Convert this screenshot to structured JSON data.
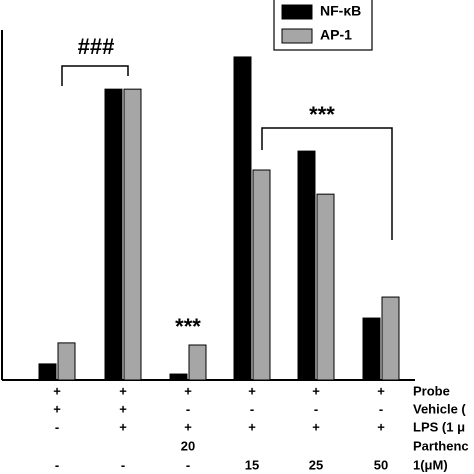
{
  "chart_data": {
    "type": "bar",
    "categories": [
      null,
      null,
      null,
      null,
      null,
      null
    ],
    "ylim": [
      0,
      100
    ],
    "series": [
      {
        "name": "NF-κB",
        "color": "#000000",
        "values": [
          4.6,
          83.1,
          1.7,
          92.3,
          65.4,
          17.7
        ]
      },
      {
        "name": "AP-1",
        "color": "#a6a6a6",
        "values": [
          10.6,
          83.1,
          10,
          60,
          53.1,
          23.7
        ]
      }
    ],
    "annotations": [
      "###",
      "***",
      "***"
    ],
    "conditions": {
      "row_labels": [
        "Probe",
        "Vehicle (",
        "LPS  (1 μ",
        "Parthenc",
        "1(μM)"
      ],
      "rows": [
        [
          "+",
          "+",
          "+",
          "+",
          "+",
          "+"
        ],
        [
          "+",
          "+",
          "-",
          "-",
          "-",
          "-"
        ],
        [
          "-",
          "+",
          "+",
          "+",
          "+",
          "+"
        ],
        [
          null,
          null,
          "20",
          null,
          null,
          null
        ],
        [
          "-",
          "-",
          "-",
          "15",
          "25",
          "50"
        ]
      ]
    }
  }
}
